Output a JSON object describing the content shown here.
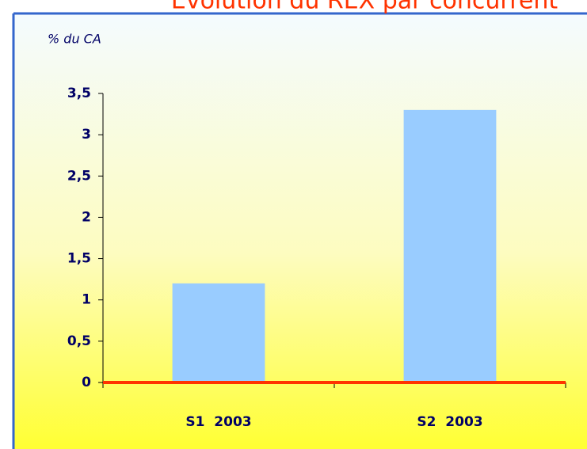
{
  "chart_data": {
    "type": "bar",
    "title": "Évolution du REX par concurrent",
    "y_label": "% du CA",
    "categories": [
      "S1  2003",
      "S2  2003"
    ],
    "values": [
      1.2,
      3.3
    ],
    "color": "#99ccff",
    "axis_color": "#ff3300",
    "ylim": [
      0,
      3.5
    ],
    "yticks": [
      0,
      {
        "value": 0.5,
        "label": "0,5"
      },
      1,
      {
        "value": 1.5,
        "label": "1,5"
      },
      2,
      {
        "value": 2.5,
        "label": "2,5"
      },
      3,
      {
        "value": 3.5,
        "label": "3,5"
      }
    ]
  }
}
